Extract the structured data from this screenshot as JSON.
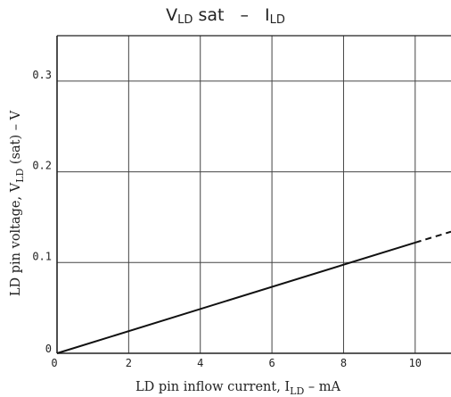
{
  "chart_data": {
    "type": "line",
    "title": {
      "v_main": "V",
      "v_sub": "LD",
      "v_tail": "sat",
      "sep": "–",
      "i_main": "I",
      "i_sub": "LD"
    },
    "xlabel": {
      "before": "LD pin inflow current, I",
      "sub": "LD",
      "after": " – mA"
    },
    "ylabel": {
      "before": "LD pin voltage, V",
      "sub": "LD",
      "after": " (sat) – V"
    },
    "xlim": [
      0,
      11
    ],
    "ylim": [
      0,
      0.35
    ],
    "x_ticks": [
      {
        "value": 0,
        "label": "0"
      },
      {
        "value": 2,
        "label": "2"
      },
      {
        "value": 4,
        "label": "4"
      },
      {
        "value": 6,
        "label": "6"
      },
      {
        "value": 8,
        "label": "8"
      },
      {
        "value": 10,
        "label": "10"
      }
    ],
    "y_ticks": [
      {
        "value": 0,
        "label": "0"
      },
      {
        "value": 0.1,
        "label": "0.1"
      },
      {
        "value": 0.2,
        "label": "0.2"
      },
      {
        "value": 0.3,
        "label": "0.3"
      }
    ],
    "grid": true,
    "series": [
      {
        "style": "solid",
        "x": [
          0,
          10
        ],
        "y": [
          0,
          0.122
        ]
      },
      {
        "style": "dashed",
        "x": [
          10,
          11
        ],
        "y": [
          0.122,
          0.134
        ]
      }
    ]
  }
}
